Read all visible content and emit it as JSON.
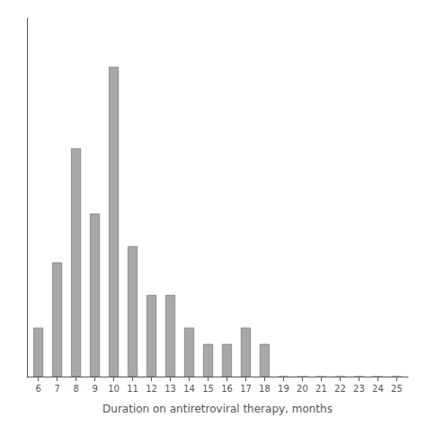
{
  "chart_data": {
    "type": "bar",
    "x": [
      6,
      7,
      8,
      9,
      10,
      11,
      12,
      13,
      14,
      15,
      16,
      17,
      18,
      19,
      20,
      21,
      22,
      23,
      24,
      25
    ],
    "values": [
      3,
      7,
      14,
      10,
      19,
      8,
      5,
      5,
      3,
      2,
      2,
      3,
      2,
      0,
      0,
      0,
      0,
      0,
      0,
      0
    ],
    "color": "#a8a8a8",
    "xlabel": "Duration on antiretroviral therapy, months",
    "xlim": [
      5.4,
      25.6
    ],
    "xticks": [
      6,
      7,
      8,
      9,
      10,
      11,
      12,
      13,
      14,
      15,
      16,
      17,
      18,
      19,
      20,
      21,
      22,
      23,
      24,
      25
    ],
    "ylim": [
      0,
      22
    ],
    "yticks": [],
    "grid": false,
    "tick_labels": "x"
  }
}
